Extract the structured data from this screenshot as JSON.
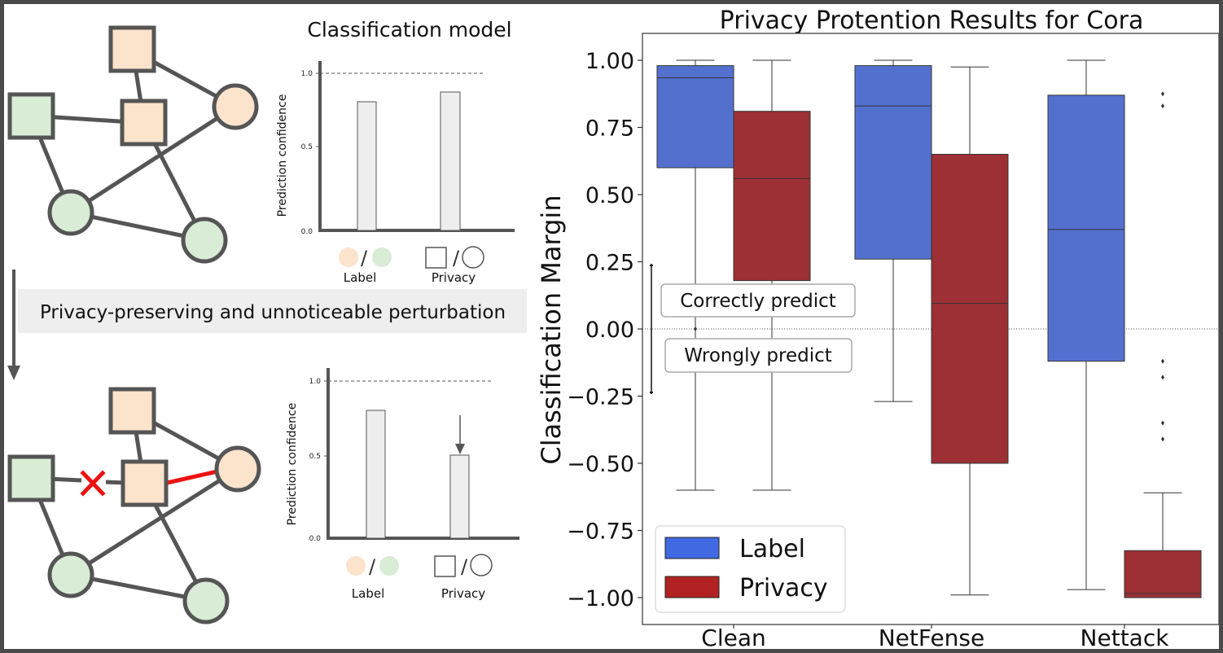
{
  "left_panel": {
    "top_title": "Classification model",
    "perturbation_banner": "Privacy-preserving and unnoticeable perturbation",
    "top_chart": {
      "ylabel": "Prediction confidence",
      "ticks": [
        "0.0",
        "0.5",
        "1.0"
      ],
      "xlabels": [
        "Label",
        "Privacy"
      ],
      "values": {
        "Label": 0.8,
        "Privacy": 0.86
      },
      "reference_line": 1.0
    },
    "bottom_chart": {
      "ylabel": "Prediction confidence",
      "ticks": [
        "0.0",
        "0.5",
        "1.0"
      ],
      "xlabels": [
        "Label",
        "Privacy"
      ],
      "values": {
        "Label": 0.8,
        "Privacy": 0.5
      },
      "reference_line": 1.0
    },
    "colors": {
      "square_node": "#fce3cc",
      "round_node_green": "#d8ecd6",
      "node_stroke": "#555555",
      "removed_edge": "#ee1111",
      "added_edge": "#ee1111"
    }
  },
  "chart_data": {
    "type": "box",
    "title": "Privacy Protention Results for Cora",
    "ylabel": "Classification Margin",
    "categories": [
      "Clean",
      "NetFense",
      "Nettack"
    ],
    "yticks": [
      "1.00",
      "0.75",
      "0.50",
      "0.25",
      "0.00",
      "−0.25",
      "−0.50",
      "−0.75",
      "−1.00"
    ],
    "ylim": [
      -1.09,
      1.1
    ],
    "zero_line": true,
    "legend_placement": "lower-left",
    "series": [
      {
        "name": "Label",
        "color": "#5470cf",
        "legend_color": "#4169e1",
        "boxes": [
          {
            "category": "Clean",
            "whisker_low": -0.6,
            "q1": 0.6,
            "median": 0.935,
            "q3": 0.98,
            "whisker_high": 1.0,
            "outliers": [
              0.0
            ]
          },
          {
            "category": "NetFense",
            "whisker_low": -0.27,
            "q1": 0.26,
            "median": 0.83,
            "q3": 0.98,
            "whisker_high": 1.0,
            "outliers": []
          },
          {
            "category": "Nettack",
            "whisker_low": -0.97,
            "q1": -0.12,
            "median": 0.37,
            "q3": 0.87,
            "whisker_high": 1.0,
            "outliers": []
          }
        ]
      },
      {
        "name": "Privacy",
        "color": "#9c3034",
        "legend_color": "#b22222",
        "boxes": [
          {
            "category": "Clean",
            "whisker_low": -0.6,
            "q1": 0.18,
            "median": 0.56,
            "q3": 0.81,
            "whisker_high": 1.0,
            "outliers": []
          },
          {
            "category": "NetFense",
            "whisker_low": -0.99,
            "q1": -0.5,
            "median": 0.095,
            "q3": 0.65,
            "whisker_high": 0.975,
            "outliers": []
          },
          {
            "category": "Nettack",
            "whisker_low": -1.0,
            "q1": -1.0,
            "median": -0.985,
            "q3": -0.825,
            "whisker_high": -0.61,
            "outliers": [
              0.875,
              0.83,
              -0.12,
              -0.18,
              -0.35,
              -0.41
            ]
          }
        ]
      }
    ],
    "annotations": {
      "correct": "Correctly predict",
      "wrong": "Wrongly predict"
    }
  }
}
